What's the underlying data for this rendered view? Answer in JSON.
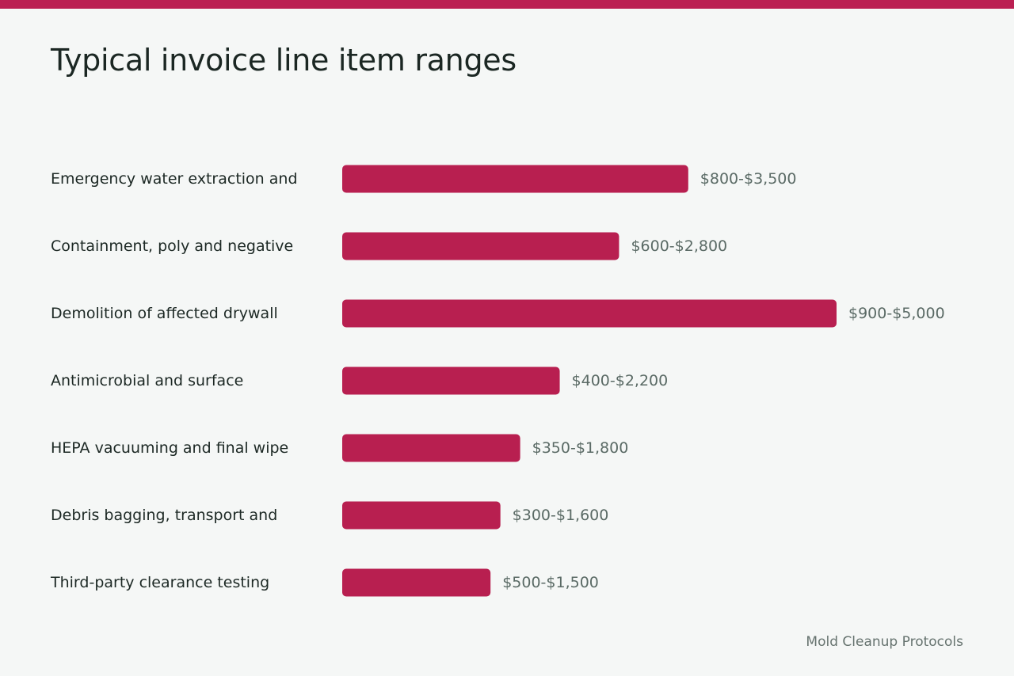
{
  "title": "Typical invoice line item ranges",
  "source": "Mold Cleanup Protocols",
  "colors": {
    "accent": "#bb1f52",
    "bar": "#b81f50",
    "background": "#f5f7f6"
  },
  "chart_data": {
    "type": "bar",
    "orientation": "horizontal",
    "title": "Typical invoice line item ranges",
    "xlabel": "",
    "ylabel": "",
    "grid": false,
    "legend": "none",
    "xlim": [
      0,
      5000
    ],
    "categories": [
      "Emergency water extraction and",
      "Containment, poly and negative",
      "Demolition of affected drywall",
      "Antimicrobial and surface",
      "HEPA vacuuming and final wipe",
      "Debris bagging, transport and",
      "Third-party clearance testing"
    ],
    "values": [
      3500,
      2800,
      5000,
      2200,
      1800,
      1600,
      1500
    ],
    "value_labels": [
      "$800-$3,500",
      "$600-$2,800",
      "$900-$5,000",
      "$400-$2,200",
      "$350-$1,800",
      "$300-$1,600",
      "$500-$1,500"
    ]
  }
}
